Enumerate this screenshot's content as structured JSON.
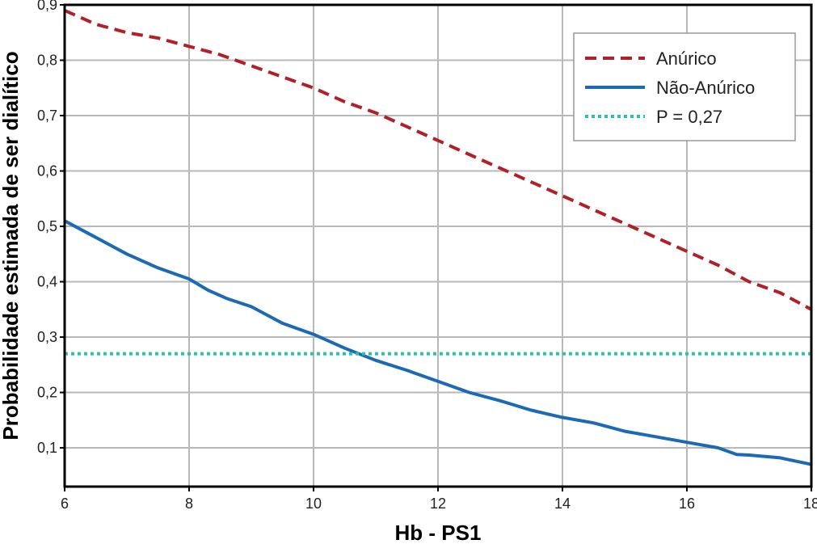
{
  "chart_data": {
    "type": "line",
    "title": "",
    "xlabel": "Hb - PS1",
    "ylabel": "Probabilidade estimada de ser dialítico",
    "xlim": [
      6,
      18
    ],
    "ylim": [
      0.03,
      0.9
    ],
    "xticks": [
      6,
      8,
      10,
      12,
      14,
      16,
      18
    ],
    "xtick_labels": [
      "6",
      "8",
      "10",
      "12",
      "14",
      "16",
      "18"
    ],
    "yticks": [
      0.1,
      0.2,
      0.3,
      0.4,
      0.5,
      0.6,
      0.7,
      0.8,
      0.9
    ],
    "ytick_labels": [
      "0,1",
      "0,2",
      "0,3",
      "0,4",
      "0,5",
      "0,6",
      "0,7",
      "0,8",
      "0,9"
    ],
    "grid": true,
    "legend_position": "top-right",
    "series": [
      {
        "name": "Anúrico",
        "color": "#b22027",
        "style": "dashed",
        "x": [
          6,
          6.5,
          7,
          7.5,
          8,
          8.5,
          9,
          9.5,
          10,
          10.5,
          11,
          11.5,
          12,
          12.5,
          13,
          13.5,
          14,
          14.5,
          15,
          15.5,
          16,
          16.5,
          17,
          17.5,
          18
        ],
        "y": [
          0.89,
          0.865,
          0.85,
          0.84,
          0.825,
          0.81,
          0.79,
          0.77,
          0.75,
          0.725,
          0.705,
          0.68,
          0.655,
          0.63,
          0.605,
          0.58,
          0.555,
          0.53,
          0.505,
          0.48,
          0.455,
          0.43,
          0.4,
          0.38,
          0.35
        ]
      },
      {
        "name": "Não-Anúrico",
        "color": "#1b6ab3",
        "style": "solid",
        "x": [
          6,
          6.5,
          7,
          7.5,
          8,
          8.3,
          8.6,
          9,
          9.5,
          10,
          10.5,
          11,
          11.5,
          12,
          12.5,
          13,
          13.5,
          14,
          14.5,
          15,
          15.5,
          16,
          16.5,
          16.8,
          17,
          17.5,
          18
        ],
        "y": [
          0.51,
          0.48,
          0.45,
          0.425,
          0.405,
          0.385,
          0.37,
          0.355,
          0.325,
          0.305,
          0.28,
          0.258,
          0.24,
          0.22,
          0.2,
          0.185,
          0.168,
          0.155,
          0.145,
          0.13,
          0.12,
          0.11,
          0.1,
          0.088,
          0.087,
          0.082,
          0.07
        ]
      },
      {
        "name": "P = 0,27",
        "color": "#2fbfb0",
        "style": "dotted",
        "x": [
          6,
          18
        ],
        "y": [
          0.27,
          0.27
        ]
      }
    ]
  }
}
